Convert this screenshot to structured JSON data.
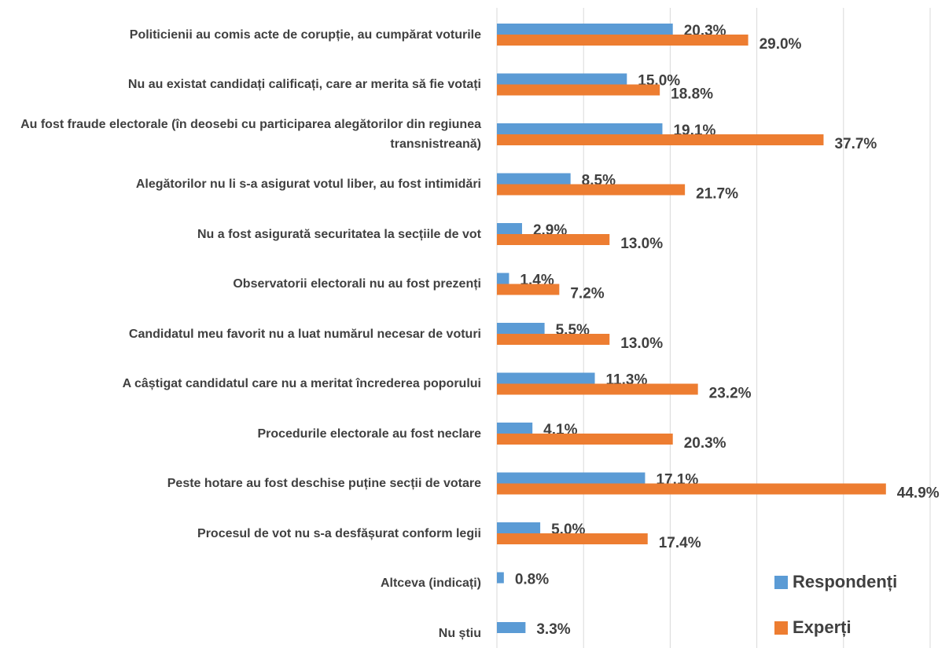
{
  "chart_data": {
    "type": "bar",
    "orientation": "horizontal",
    "categories": [
      "Politicienii au comis acte de corupție, au cumpărat voturile",
      "Nu au existat candidați calificați, care ar merita să fie votați",
      "Au fost fraude electorale (în deosebi cu participarea alegătorilor din regiunea transnistreană)",
      "Alegătorilor nu li s-a asigurat votul liber, au fost intimidări",
      "Nu a fost asigurată securitatea la secțiile de vot",
      "Observatorii electorali nu au fost prezenți",
      "Candidatul meu favorit nu a luat numărul necesar de voturi",
      "A câștigat candidatul care nu a meritat încrederea poporului",
      "Procedurile electorale au fost neclare",
      "Peste hotare au fost deschise puține secții de votare",
      "Procesul de vot nu s-a desfășurat conform legii",
      "Altceva (indicați)",
      "Nu știu"
    ],
    "series": [
      {
        "name": "Respondenți",
        "color": "#5b9bd5",
        "values": [
          20.3,
          15.0,
          19.1,
          8.5,
          2.9,
          1.4,
          5.5,
          11.3,
          4.1,
          17.1,
          5.0,
          0.8,
          3.3
        ],
        "value_labels": [
          "20.3%",
          "15.0%",
          "19.1%",
          "8.5%",
          "2.9%",
          "1.4%",
          "5.5%",
          "11.3%",
          "4.1%",
          "17.1%",
          "5.0%",
          "0.8%",
          "3.3%"
        ]
      },
      {
        "name": "Experți",
        "color": "#ed7d31",
        "values": [
          29.0,
          18.8,
          37.7,
          21.7,
          13.0,
          7.2,
          13.0,
          23.2,
          20.3,
          44.9,
          17.4,
          null,
          null
        ],
        "value_labels": [
          "29.0%",
          "18.8%",
          "37.7%",
          "21.7%",
          "13.0%",
          "7.2%",
          "13.0%",
          "23.2%",
          "20.3%",
          "44.9%",
          "17.4%",
          null,
          null
        ]
      }
    ],
    "xlim": [
      0,
      50
    ],
    "xticks": [
      0,
      10,
      20,
      30,
      40,
      50
    ],
    "grid": true,
    "legend": "lower right"
  }
}
